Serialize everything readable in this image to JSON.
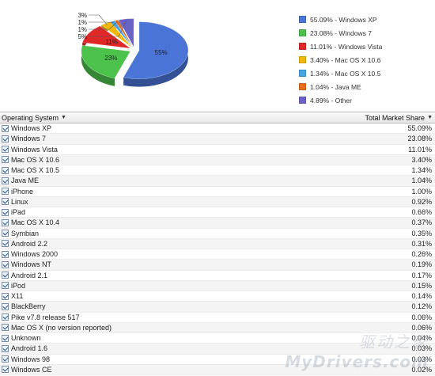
{
  "chart_data": {
    "type": "pie",
    "slices": [
      {
        "label": "Windows XP",
        "value": 55.09,
        "display": "55.09% - Windows XP",
        "pie_label": "55%",
        "color": "#4a74d6"
      },
      {
        "label": "Windows 7",
        "value": 23.08,
        "display": "23.08% - Windows 7",
        "pie_label": "23%",
        "color": "#4cc14c"
      },
      {
        "label": "Windows Vista",
        "value": 11.01,
        "display": "11.01% - Windows Vista",
        "pie_label": "11%",
        "color": "#e02828"
      },
      {
        "label": "Mac OS X 10.6",
        "value": 3.4,
        "display": "3.40% - Mac OS X 10.6",
        "pie_label": "3%",
        "color": "#f2b90c"
      },
      {
        "label": "Mac OS X 10.5",
        "value": 1.34,
        "display": "1.34% - Mac OS X 10.5",
        "pie_label": "1%",
        "color": "#44a7e3"
      },
      {
        "label": "Java ME",
        "value": 1.04,
        "display": "1.04% - Java ME",
        "pie_label": "1%",
        "color": "#ea6d1e"
      },
      {
        "label": "Other",
        "value": 4.89,
        "display": "4.89% - Other",
        "pie_label": "5%",
        "color": "#6a62c4"
      }
    ]
  },
  "table": {
    "col_os": "Operating System",
    "col_share": "Total Market Share",
    "rows": [
      {
        "name": "Windows XP",
        "share": "55.09%"
      },
      {
        "name": "Windows 7",
        "share": "23.08%"
      },
      {
        "name": "Windows Vista",
        "share": "11.01%"
      },
      {
        "name": "Mac OS X 10.6",
        "share": "3.40%"
      },
      {
        "name": "Mac OS X 10.5",
        "share": "1.34%"
      },
      {
        "name": "Java ME",
        "share": "1.04%"
      },
      {
        "name": "iPhone",
        "share": "1.00%"
      },
      {
        "name": "Linux",
        "share": "0.92%"
      },
      {
        "name": "iPad",
        "share": "0.66%"
      },
      {
        "name": "Mac OS X 10.4",
        "share": "0.37%"
      },
      {
        "name": "Symbian",
        "share": "0.35%"
      },
      {
        "name": "Android 2.2",
        "share": "0.31%"
      },
      {
        "name": "Windows 2000",
        "share": "0.26%"
      },
      {
        "name": "Windows NT",
        "share": "0.19%"
      },
      {
        "name": "Android 2.1",
        "share": "0.17%"
      },
      {
        "name": "iPod",
        "share": "0.15%"
      },
      {
        "name": "X11",
        "share": "0.14%"
      },
      {
        "name": "BlackBerry",
        "share": "0.12%"
      },
      {
        "name": "Pike v7.8 release 517",
        "share": "0.06%"
      },
      {
        "name": "Mac OS X (no version reported)",
        "share": "0.06%"
      },
      {
        "name": "Unknown",
        "share": "0.04%"
      },
      {
        "name": "Android 1.6",
        "share": "0.03%"
      },
      {
        "name": "Windows 98",
        "share": "0.03%"
      },
      {
        "name": "Windows CE",
        "share": "0.02%"
      }
    ]
  },
  "watermark": {
    "logo": "驱动之家",
    "url": "MyDrivers.com"
  }
}
